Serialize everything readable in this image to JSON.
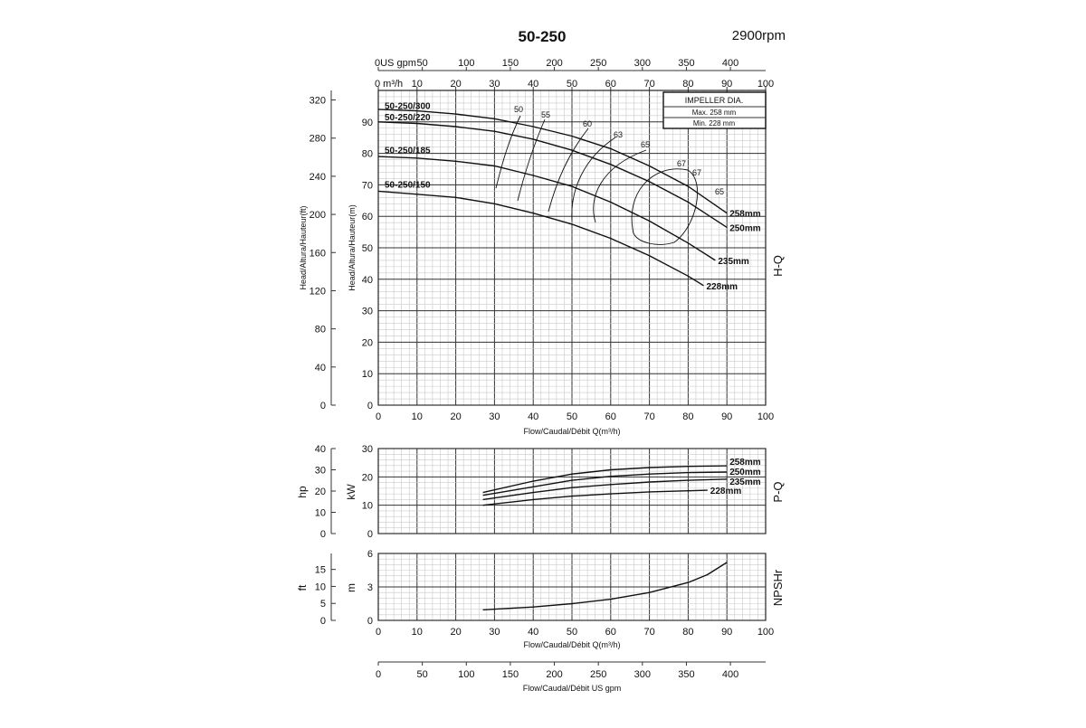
{
  "title": "50-250",
  "speed": "2900rpm",
  "impeller_box": {
    "title": "IMPELLER DIA.",
    "max": "Max.  258  mm",
    "min": "Min.   228  mm"
  },
  "top_axes": {
    "gpm_label": "US gpm",
    "m3h_label": "m³/h",
    "gpm_ticks": [
      "0",
      "50",
      "100",
      "150",
      "200",
      "250",
      "300",
      "350",
      "400"
    ],
    "m3h_ticks": [
      "0",
      "10",
      "20",
      "30",
      "40",
      "50",
      "60",
      "70",
      "80",
      "90",
      "100"
    ]
  },
  "labels": {
    "hq_ylabel_ft": "Head/Altura/Hauteur(ft)",
    "hq_ylabel_m": "Head/Altura/Hauteur(m)",
    "hq_side": "H-Q",
    "pq_side": "P-Q",
    "npsh_side": "NPSHr",
    "hp": "hp",
    "kw": "kW",
    "ft": "ft",
    "m": "m",
    "x_flow_m3h": "Flow/Caudal/Débit Q(m³/h)",
    "x_flow_gpm": "Flow/Caudal/Débit  US gpm"
  },
  "chart_data": [
    {
      "type": "line",
      "name": "H-Q",
      "xlabel": "Flow/Caudal/Débit Q(m³/h)",
      "ylabel": "Head/Altura/Hauteur(m)",
      "xlim": [
        0,
        100
      ],
      "ylim": [
        0,
        100
      ],
      "secondary_ylim_ft": [
        0,
        330
      ],
      "x_ticks": [
        "0",
        "10",
        "20",
        "30",
        "40",
        "50",
        "60",
        "70",
        "80",
        "90",
        "100"
      ],
      "y_ticks": [
        "0",
        "10",
        "20",
        "30",
        "40",
        "50",
        "60",
        "70",
        "80",
        "90"
      ],
      "ft_ticks": [
        "0",
        "40",
        "80",
        "120",
        "160",
        "200",
        "240",
        "280",
        "320"
      ],
      "curve_labels": [
        "50-250/300",
        "50-250/220",
        "50-250/185",
        "50-250/150"
      ],
      "series": [
        {
          "name": "258mm",
          "x": [
            0,
            10,
            20,
            30,
            40,
            50,
            60,
            70,
            80,
            90
          ],
          "y": [
            94,
            93.5,
            92.5,
            91,
            88.5,
            85.5,
            81.5,
            76,
            69.5,
            61
          ]
        },
        {
          "name": "250mm",
          "x": [
            0,
            10,
            20,
            30,
            40,
            50,
            60,
            70,
            80,
            90
          ],
          "y": [
            90,
            89.5,
            88.5,
            87,
            84.5,
            81,
            76.5,
            71,
            64.5,
            56.5
          ]
        },
        {
          "name": "235mm",
          "x": [
            0,
            10,
            20,
            30,
            40,
            50,
            60,
            70,
            80,
            87
          ],
          "y": [
            79,
            78.5,
            77.5,
            76,
            73,
            69.5,
            64.5,
            58.5,
            51.5,
            46
          ]
        },
        {
          "name": "228mm",
          "x": [
            0,
            10,
            20,
            30,
            40,
            50,
            60,
            70,
            80,
            84
          ],
          "y": [
            68,
            67,
            66,
            64,
            61,
            57.5,
            53,
            47.5,
            41,
            38
          ]
        }
      ],
      "efficiency_labels": [
        "50",
        "55",
        "60",
        "63",
        "65",
        "67",
        "67",
        "65"
      ]
    },
    {
      "type": "line",
      "name": "P-Q",
      "ylabel": "kW",
      "xlim": [
        0,
        100
      ],
      "ylim": [
        0,
        30
      ],
      "secondary_ylim_hp": [
        0,
        40
      ],
      "y_ticks": [
        "0",
        "10",
        "20",
        "30"
      ],
      "hp_ticks": [
        "0",
        "10",
        "20",
        "30",
        "40"
      ],
      "series": [
        {
          "name": "258mm",
          "x": [
            27,
            40,
            50,
            60,
            70,
            80,
            90
          ],
          "y": [
            14.5,
            18.5,
            21,
            22.5,
            23.3,
            23.7,
            23.9
          ]
        },
        {
          "name": "250mm",
          "x": [
            27,
            40,
            50,
            60,
            70,
            80,
            90
          ],
          "y": [
            13.5,
            16.5,
            18.8,
            20.2,
            21,
            21.5,
            21.7
          ]
        },
        {
          "name": "235mm",
          "x": [
            27,
            40,
            50,
            60,
            70,
            80,
            90
          ],
          "y": [
            12,
            14.5,
            16.2,
            17.3,
            18.2,
            18.8,
            19.2
          ]
        },
        {
          "name": "228mm",
          "x": [
            27,
            40,
            50,
            60,
            70,
            80,
            85
          ],
          "y": [
            10,
            12,
            13.2,
            14,
            14.7,
            15.1,
            15.3
          ]
        }
      ]
    },
    {
      "type": "line",
      "name": "NPSHr",
      "ylabel": "m",
      "xlabel": "Flow/Caudal/Débit Q(m³/h)",
      "xlim": [
        0,
        100
      ],
      "ylim": [
        0,
        6
      ],
      "secondary_ylim_ft": [
        0,
        19.7
      ],
      "y_ticks": [
        "0",
        "3",
        "6"
      ],
      "ft_ticks": [
        "0",
        "5",
        "10",
        "15"
      ],
      "series": [
        {
          "name": "NPSHr",
          "x": [
            27,
            40,
            50,
            60,
            70,
            80,
            85,
            90
          ],
          "y": [
            0.95,
            1.2,
            1.5,
            1.9,
            2.5,
            3.4,
            4.1,
            5.2
          ]
        }
      ]
    },
    {
      "type": "axis",
      "name": "US gpm",
      "xlabel": "Flow/Caudal/Débit  US gpm",
      "xlim": [
        0,
        440
      ],
      "x_ticks": [
        "0",
        "50",
        "100",
        "150",
        "200",
        "250",
        "300",
        "350",
        "400"
      ]
    }
  ]
}
